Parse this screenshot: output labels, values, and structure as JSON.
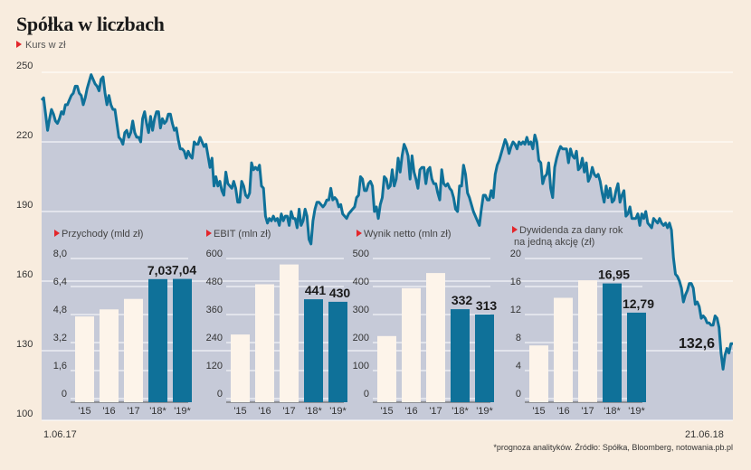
{
  "title": "Spółka w liczbach",
  "subtitle": "Kurs w zł",
  "footnote": "*prognoza analityków. Źródło: Spółka, Bloomberg, notowania.pb.pl",
  "colors": {
    "background": "#f8ecde",
    "area": "#c6cad8",
    "line": "#0f7199",
    "bar_actual": "#fdf4ea",
    "bar_forecast": "#0f7199",
    "grid": "#ffffff",
    "marker": "#e3262b"
  },
  "chart_data": [
    {
      "type": "area",
      "title": "Kurs w zł",
      "x_start_label": "1.06.17",
      "x_end_label": "21.06.18",
      "yticks": [
        250,
        220,
        190,
        160,
        130,
        100
      ],
      "ylim": [
        100,
        250
      ],
      "last_value_label": "132,6",
      "values": [
        238,
        239,
        232,
        225,
        230,
        234,
        232,
        229,
        228,
        230,
        233,
        232,
        236,
        236,
        238,
        240,
        241,
        244,
        244,
        241,
        240,
        236,
        239,
        243,
        246,
        249,
        247,
        245,
        244,
        242,
        247,
        248,
        241,
        236,
        240,
        236,
        234,
        234,
        228,
        222,
        221,
        219,
        224,
        225,
        222,
        224,
        229,
        224,
        222,
        222,
        220,
        230,
        233,
        228,
        224,
        231,
        225,
        230,
        233,
        233,
        226,
        230,
        228,
        229,
        232,
        232,
        228,
        225,
        226,
        221,
        217,
        217,
        216,
        213,
        216,
        214,
        213,
        220,
        219,
        219,
        222,
        220,
        218,
        219,
        214,
        209,
        213,
        201,
        205,
        201,
        203,
        199,
        197,
        207,
        202,
        201,
        200,
        203,
        200,
        194,
        194,
        203,
        201,
        197,
        196,
        198,
        211,
        208,
        209,
        208,
        210,
        201,
        200,
        188,
        185,
        187,
        186,
        188,
        186,
        187,
        184,
        189,
        186,
        188,
        188,
        184,
        190,
        187,
        187,
        183,
        191,
        184,
        186,
        191,
        188,
        178,
        176,
        186,
        191,
        194,
        194,
        193,
        192,
        193,
        195,
        195,
        200,
        195,
        196,
        195,
        192,
        193,
        189,
        188,
        187,
        189,
        190,
        191,
        192,
        196,
        197,
        205,
        204,
        199,
        199,
        202,
        203,
        201,
        190,
        192,
        187,
        193,
        196,
        205,
        204,
        200,
        201,
        208,
        201,
        204,
        213,
        207,
        214,
        219,
        217,
        214,
        204,
        214,
        207,
        204,
        200,
        208,
        209,
        209,
        202,
        208,
        209,
        204,
        202,
        202,
        198,
        195,
        208,
        202,
        201,
        202,
        200,
        199,
        196,
        191,
        190,
        201,
        201,
        210,
        206,
        198,
        196,
        193,
        190,
        188,
        186,
        184,
        191,
        197,
        197,
        195,
        195,
        199,
        196,
        206,
        210,
        212,
        215,
        218,
        221,
        219,
        215,
        218,
        220,
        219,
        217,
        220,
        219,
        220,
        219,
        222,
        219,
        220,
        217,
        223,
        220,
        212,
        211,
        202,
        205,
        206,
        211,
        200,
        196,
        209,
        213,
        216,
        218,
        217,
        217,
        217,
        211,
        217,
        214,
        213,
        216,
        208,
        209,
        213,
        207,
        211,
        203,
        205,
        209,
        206,
        205,
        206,
        203,
        198,
        194,
        201,
        196,
        200,
        194,
        195,
        199,
        202,
        194,
        197,
        199,
        188,
        189,
        192,
        187,
        187,
        187,
        189,
        184,
        189,
        187,
        190,
        185,
        184,
        183,
        187,
        186,
        185,
        187,
        185,
        184,
        185,
        183,
        185,
        182,
        170,
        163,
        162,
        160,
        157,
        151,
        154,
        156,
        159,
        159,
        157,
        150,
        151,
        149,
        144,
        145,
        144,
        142,
        142,
        141,
        141,
        145,
        144,
        140,
        129,
        122,
        128,
        131,
        129,
        133,
        133
      ]
    },
    {
      "type": "bar",
      "title": "Przychody (mld zł)",
      "categories": [
        "'15",
        "'16",
        "'17",
        "'18*",
        "'19*"
      ],
      "values": [
        4.9,
        5.3,
        5.9,
        7.03,
        7.04
      ],
      "forecast": [
        false,
        false,
        false,
        true,
        true
      ],
      "data_labels": [
        "",
        "",
        "",
        "7,03",
        "7,04"
      ],
      "yticks": [
        "8,0",
        "6,4",
        "4,8",
        "3,2",
        "1,6",
        "0"
      ],
      "ylim": [
        0,
        8.0
      ]
    },
    {
      "type": "bar",
      "title": "EBIT (mln zł)",
      "categories": [
        "'15",
        "'16",
        "'17",
        "'18*",
        "'19*"
      ],
      "values": [
        290,
        505,
        590,
        441,
        430
      ],
      "forecast": [
        false,
        false,
        false,
        true,
        true
      ],
      "data_labels": [
        "",
        "",
        "",
        "441",
        "430"
      ],
      "yticks": [
        "600",
        "480",
        "360",
        "240",
        "120",
        "0"
      ],
      "ylim": [
        0,
        600
      ]
    },
    {
      "type": "bar",
      "title": "Wynik netto (mln zł)",
      "categories": [
        "'15",
        "'16",
        "'17",
        "'18*",
        "'19*"
      ],
      "values": [
        236,
        407,
        461,
        332,
        313
      ],
      "forecast": [
        false,
        false,
        false,
        true,
        true
      ],
      "data_labels": [
        "",
        "",
        "",
        "332",
        "313"
      ],
      "yticks": [
        "500",
        "400",
        "300",
        "200",
        "100",
        "0"
      ],
      "ylim": [
        0,
        500
      ]
    },
    {
      "type": "bar",
      "title": "Dywidenda za dany rok",
      "title2": "na jedną akcję (zł)",
      "categories": [
        "'15",
        "'16",
        "'17",
        "'18*",
        "'19*"
      ],
      "values": [
        8.1,
        14.9,
        17.4,
        16.95,
        12.79
      ],
      "forecast": [
        false,
        false,
        false,
        true,
        true
      ],
      "data_labels": [
        "",
        "",
        "",
        "16,95",
        "12,79"
      ],
      "yticks": [
        "20",
        "16",
        "12",
        "8",
        "4",
        "0"
      ],
      "ylim": [
        0,
        20
      ]
    }
  ]
}
